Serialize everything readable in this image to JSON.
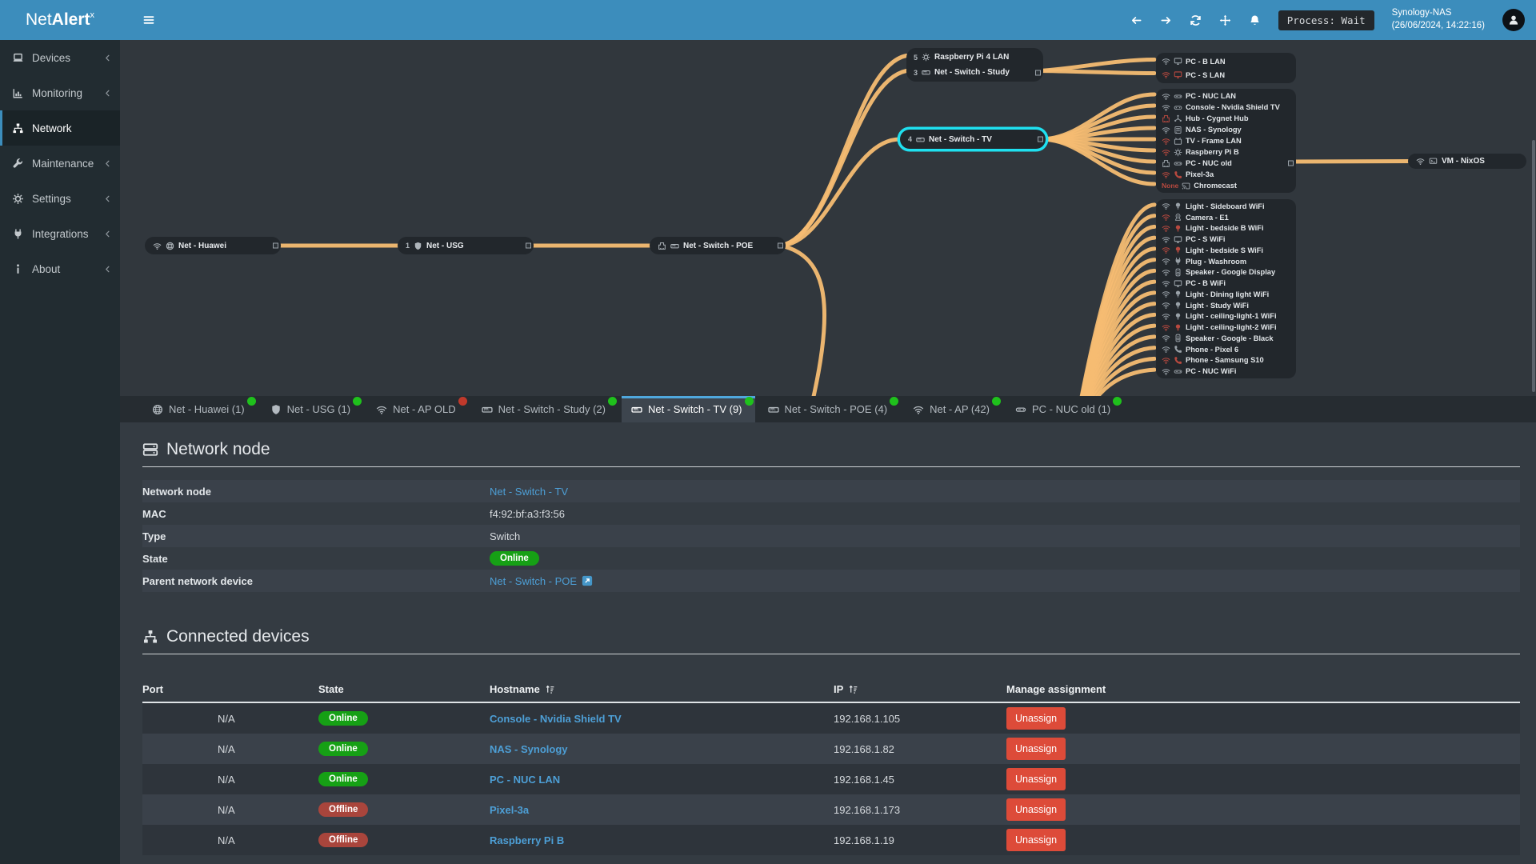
{
  "app": {
    "brand": {
      "prefix": "Net",
      "bold": "Alert",
      "sup": "x"
    }
  },
  "topbar": {
    "nav_icons": [
      {
        "icon": "arrowL",
        "name": "back"
      },
      {
        "icon": "arrowR",
        "name": "forward"
      },
      {
        "icon": "sync",
        "name": "refresh"
      },
      {
        "icon": "move",
        "name": "pan"
      },
      {
        "icon": "bell",
        "name": "notifications"
      }
    ],
    "process_status": "Process: Wait",
    "device_name": "Synology-NAS",
    "timestamp": "(26/06/2024, 14:22:16)"
  },
  "sidebar": {
    "items": [
      {
        "label": "Devices",
        "icon": "laptop",
        "chevron": true
      },
      {
        "label": "Monitoring",
        "icon": "chart",
        "chevron": true
      },
      {
        "label": "Network",
        "icon": "sitemap",
        "active": true
      },
      {
        "label": "Maintenance",
        "icon": "wrench",
        "chevron": true
      },
      {
        "label": "Settings",
        "icon": "gear",
        "chevron": true
      },
      {
        "label": "Integrations",
        "icon": "plug",
        "chevron": true
      },
      {
        "label": "About",
        "icon": "info",
        "chevron": true
      }
    ]
  },
  "topology": {
    "nodes": {
      "huawei": {
        "icons": [
          "wifi",
          "globe"
        ],
        "label": "Net - Huawei",
        "connR": true
      },
      "usg": {
        "badge": "1",
        "icons": [
          "shield"
        ],
        "label": "Net - USG",
        "connR": true
      },
      "poe": {
        "icons": [
          "eth",
          "switch"
        ],
        "label": "Net - Switch - POE",
        "connR": true
      },
      "study_rows": [
        {
          "badge": "5",
          "icons": [
            "raspberry"
          ],
          "label": "Raspberry Pi 4 LAN"
        },
        {
          "badge": "3",
          "icons": [
            "switch"
          ],
          "label": "Net - Switch - Study",
          "connR": true
        }
      ],
      "tv": {
        "badge": "4",
        "icons": [
          "switch"
        ],
        "label": "Net - Switch - TV",
        "connR": true,
        "selected": true
      },
      "vm": {
        "icons": [
          "wifi",
          "vm"
        ],
        "label": "VM - NixOS"
      }
    },
    "clusters": {
      "none_label": "None",
      "study_children": [
        {
          "conn": "wifi",
          "icon": "monitor",
          "label": "PC - B LAN"
        },
        {
          "conn": "wifi",
          "connRed": true,
          "icon": "monitor",
          "iconRed": true,
          "label": "PC - S LAN"
        }
      ],
      "tv_children": [
        {
          "conn": "wifi",
          "icon": "nuc",
          "label": "PC - NUC LAN"
        },
        {
          "conn": "wifi",
          "icon": "console",
          "label": "Console - Nvidia Shield TV"
        },
        {
          "conn": "eth",
          "connRed": true,
          "icon": "hub",
          "label": "Hub - Cygnet Hub"
        },
        {
          "conn": "wifi",
          "icon": "nas",
          "label": "NAS - Synology"
        },
        {
          "conn": "wifi",
          "connRed": true,
          "icon": "tv",
          "label": "TV - Frame LAN"
        },
        {
          "conn": "wifi",
          "connRed": true,
          "icon": "raspberry",
          "label": "Raspberry Pi B"
        },
        {
          "conn": "eth",
          "icon": "nuc",
          "label": "PC - NUC old",
          "connR": true
        },
        {
          "conn": "wifi",
          "connRed": true,
          "icon": "phone",
          "iconRed": true,
          "label": "Pixel-3a"
        },
        {
          "conn": "none",
          "icon": "cast",
          "label": "Chromecast"
        }
      ],
      "ap_children": [
        {
          "conn": "wifi",
          "icon": "bulb",
          "label": "Light - Sideboard WiFi"
        },
        {
          "conn": "wifi",
          "connRed": true,
          "icon": "camera",
          "label": "Camera - E1"
        },
        {
          "conn": "wifi",
          "connRed": true,
          "icon": "bulb",
          "iconRed": true,
          "label": "Light - bedside B WiFi"
        },
        {
          "conn": "wifi",
          "icon": "monitor",
          "label": "PC - S WiFi"
        },
        {
          "conn": "wifi",
          "connRed": true,
          "icon": "bulb",
          "iconRed": true,
          "label": "Light - bedside S WiFi"
        },
        {
          "conn": "wifi",
          "icon": "plug",
          "label": "Plug - Washroom"
        },
        {
          "conn": "wifi",
          "icon": "speaker",
          "label": "Speaker - Google Display"
        },
        {
          "conn": "wifi",
          "icon": "monitor",
          "label": "PC - B WiFi"
        },
        {
          "conn": "wifi",
          "icon": "bulb",
          "label": "Light - Dining light WiFi"
        },
        {
          "conn": "wifi",
          "icon": "bulb",
          "label": "Light - Study WiFi"
        },
        {
          "conn": "wifi",
          "icon": "bulb",
          "label": "Light - ceiling-light-1 WiFi"
        },
        {
          "conn": "wifi",
          "connRed": true,
          "icon": "bulb",
          "iconRed": true,
          "label": "Light - ceiling-light-2 WiFi"
        },
        {
          "conn": "wifi",
          "icon": "speaker",
          "label": "Speaker - Google - Black"
        },
        {
          "conn": "wifi",
          "icon": "phone",
          "label": "Phone - Pixel 6"
        },
        {
          "conn": "wifi",
          "connRed": true,
          "icon": "phone",
          "iconRed": true,
          "label": "Phone - Samsung S10"
        },
        {
          "conn": "wifi",
          "icon": "nuc",
          "label": "PC - NUC WiFi"
        }
      ]
    }
  },
  "tabs": [
    {
      "icon": "globe",
      "label": "Net - Huawei (1)",
      "dot": "green"
    },
    {
      "icon": "shield",
      "label": "Net - USG (1)",
      "dot": "green"
    },
    {
      "icon": "wifi",
      "label": "Net - AP OLD",
      "dot": "red"
    },
    {
      "icon": "switch",
      "label": "Net - Switch - Study (2)",
      "dot": "green"
    },
    {
      "icon": "switch",
      "label": "Net - Switch - TV (9)",
      "dot": "green",
      "active": true
    },
    {
      "icon": "switch",
      "label": "Net - Switch - POE (4)",
      "dot": "green"
    },
    {
      "icon": "wifi",
      "label": "Net - AP (42)",
      "dot": "green"
    },
    {
      "icon": "nuc",
      "label": "PC - NUC old (1)",
      "dot": "green"
    }
  ],
  "network_node": {
    "title": "Network node",
    "rows": [
      {
        "label": "Network node",
        "value": "Net - Switch - TV",
        "type": "link"
      },
      {
        "label": "MAC",
        "value": "f4:92:bf:a3:f3:56",
        "type": "text"
      },
      {
        "label": "Type",
        "value": "Switch",
        "type": "text"
      },
      {
        "label": "State",
        "value": "Online",
        "type": "badge"
      },
      {
        "label": "Parent network device",
        "value": "Net - Switch - POE",
        "type": "link-ext"
      }
    ]
  },
  "connected_devices": {
    "title": "Connected devices",
    "columns": [
      {
        "label": "Port"
      },
      {
        "label": "State"
      },
      {
        "label": "Hostname",
        "sortable": true
      },
      {
        "label": "IP",
        "sortable": true
      },
      {
        "label": "Manage assignment"
      }
    ],
    "rows": [
      {
        "port": "N/A",
        "state": "Online",
        "hostname": "Console - Nvidia Shield TV",
        "ip": "192.168.1.105",
        "action": "Unassign"
      },
      {
        "port": "N/A",
        "state": "Online",
        "hostname": "NAS - Synology",
        "ip": "192.168.1.82",
        "action": "Unassign"
      },
      {
        "port": "N/A",
        "state": "Online",
        "hostname": "PC - NUC LAN",
        "ip": "192.168.1.45",
        "action": "Unassign"
      },
      {
        "port": "N/A",
        "state": "Offline",
        "hostname": "Pixel-3a",
        "ip": "192.168.1.173",
        "action": "Unassign"
      },
      {
        "port": "N/A",
        "state": "Offline",
        "hostname": "Raspberry Pi B",
        "ip": "192.168.1.19",
        "action": "Unassign"
      }
    ]
  },
  "colors": {
    "accent": "#3c8dbc",
    "link": "#4d9fd6",
    "online": "#16a015",
    "offline": "#a9453c",
    "danger": "#dd4b39",
    "line": "#f6bc72",
    "selection": "#1fe0f0",
    "dot_green": "#1fc11c",
    "dot_red": "#c0392b"
  }
}
